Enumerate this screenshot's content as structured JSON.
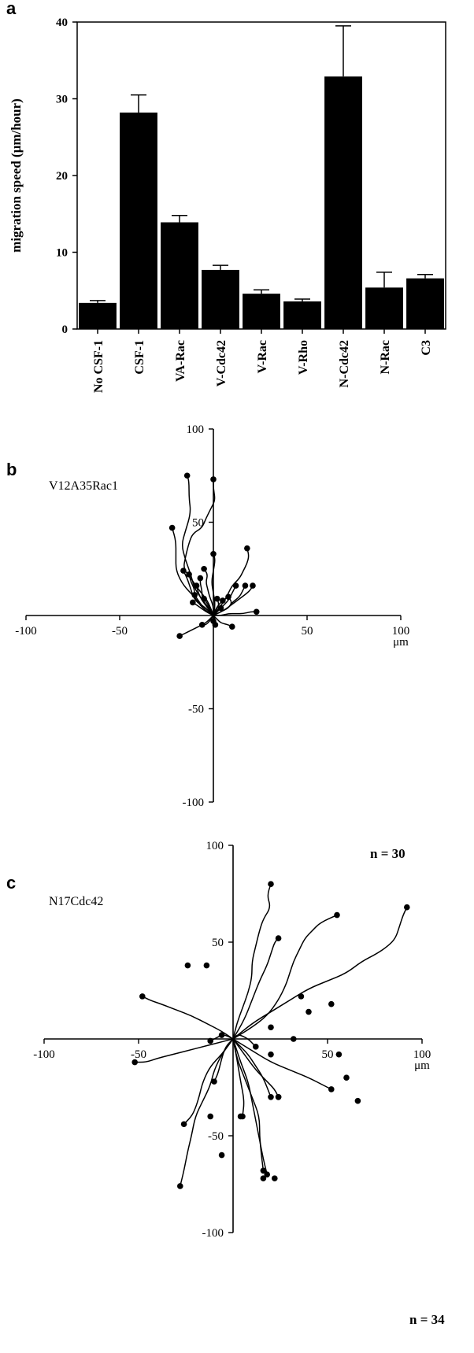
{
  "chart_data": [
    {
      "panel": "a",
      "type": "bar",
      "ylabel": "migration speed (μm/hour)",
      "ylim": [
        0,
        40
      ],
      "yticks": [
        0,
        10,
        20,
        30,
        40
      ],
      "categories": [
        "No CSF-1",
        "CSF-1",
        "VA-Rac",
        "V-Cdc42",
        "V-Rac",
        "V-Rho",
        "N-Cdc42",
        "N-Rac",
        "C3"
      ],
      "values": [
        3.4,
        28.2,
        13.9,
        7.7,
        4.6,
        3.6,
        32.9,
        5.4,
        6.6
      ],
      "errors": [
        0.3,
        2.3,
        0.9,
        0.6,
        0.5,
        0.3,
        6.6,
        2.0,
        0.5
      ]
    },
    {
      "panel": "b",
      "type": "line",
      "subtitle": "V12A35Rac1",
      "xlim": [
        -100,
        100
      ],
      "ylim": [
        -100,
        100
      ],
      "xticks": [
        -100,
        -50,
        50,
        100
      ],
      "yticks": [
        100,
        50,
        -50,
        -100
      ],
      "unit": "μm",
      "n_label": "n = 30",
      "tracks": [
        [
          [
            0,
            0
          ],
          [
            -4,
            6
          ],
          [
            -10,
            14
          ],
          [
            -12,
            22
          ],
          [
            -15,
            30
          ],
          [
            -17,
            38
          ],
          [
            -15,
            45
          ],
          [
            -12,
            55
          ],
          [
            -13,
            63
          ],
          [
            -13,
            72
          ],
          [
            -14,
            75
          ]
        ],
        [
          [
            0,
            0
          ],
          [
            -6,
            4
          ],
          [
            -10,
            10
          ],
          [
            -16,
            16
          ],
          [
            -20,
            24
          ],
          [
            -20,
            32
          ],
          [
            -20,
            40
          ],
          [
            -22,
            47
          ]
        ],
        [
          [
            0,
            0
          ],
          [
            -3,
            8
          ],
          [
            -8,
            14
          ],
          [
            -12,
            20
          ],
          [
            -16,
            25
          ],
          [
            -15,
            31
          ],
          [
            -13,
            39
          ],
          [
            -11,
            44
          ],
          [
            -6,
            47
          ],
          [
            -4,
            52
          ],
          [
            -1,
            58
          ],
          [
            1,
            62
          ],
          [
            0,
            68
          ],
          [
            0,
            73
          ]
        ],
        [
          [
            0,
            0
          ],
          [
            3,
            4
          ],
          [
            6,
            8
          ],
          [
            8,
            12
          ],
          [
            10,
            16
          ],
          [
            14,
            20
          ],
          [
            16,
            24
          ],
          [
            18,
            28
          ],
          [
            19,
            32
          ],
          [
            18,
            36
          ]
        ],
        [
          [
            0,
            0
          ],
          [
            -4,
            4
          ],
          [
            -10,
            8
          ],
          [
            -12,
            14
          ],
          [
            -14,
            20
          ],
          [
            -16,
            24
          ]
        ],
        [
          [
            0,
            0
          ],
          [
            -4,
            4
          ],
          [
            -10,
            8
          ],
          [
            -10,
            14
          ],
          [
            -12,
            18
          ],
          [
            -13,
            22
          ]
        ],
        [
          [
            0,
            0
          ],
          [
            -2,
            4
          ],
          [
            -6,
            8
          ],
          [
            -6,
            13
          ],
          [
            -7,
            17
          ],
          [
            -7,
            20
          ]
        ],
        [
          [
            0,
            0
          ],
          [
            -3,
            4
          ],
          [
            -6,
            8
          ],
          [
            -8,
            12
          ],
          [
            -9,
            16
          ]
        ],
        [
          [
            0,
            0
          ],
          [
            0,
            5
          ],
          [
            -2,
            10
          ],
          [
            -3,
            14
          ],
          [
            -4,
            18
          ],
          [
            -3,
            22
          ],
          [
            -5,
            25
          ]
        ],
        [
          [
            0,
            0
          ],
          [
            1,
            6
          ],
          [
            0,
            12
          ],
          [
            -1,
            18
          ],
          [
            0,
            24
          ],
          [
            1,
            30
          ],
          [
            0,
            33
          ]
        ],
        [
          [
            0,
            0
          ],
          [
            -3,
            3
          ],
          [
            -6,
            5
          ],
          [
            -8,
            8
          ],
          [
            -10,
            11
          ]
        ],
        [
          [
            0,
            0
          ],
          [
            -4,
            2
          ],
          [
            -8,
            5
          ],
          [
            -11,
            7
          ]
        ],
        [
          [
            0,
            0
          ],
          [
            1,
            2
          ],
          [
            2,
            4
          ],
          [
            3,
            6
          ],
          [
            2,
            9
          ]
        ],
        [
          [
            0,
            0
          ],
          [
            4,
            2
          ],
          [
            8,
            4
          ],
          [
            10,
            7
          ],
          [
            8,
            10
          ]
        ],
        [
          [
            0,
            0
          ],
          [
            4,
            2
          ],
          [
            8,
            4
          ],
          [
            10,
            7
          ],
          [
            14,
            10
          ],
          [
            16,
            14
          ],
          [
            17,
            16
          ]
        ],
        [
          [
            0,
            0
          ],
          [
            6,
            3
          ],
          [
            10,
            6
          ],
          [
            14,
            9
          ],
          [
            18,
            12
          ],
          [
            20,
            14
          ],
          [
            21,
            16
          ]
        ],
        [
          [
            0,
            0
          ],
          [
            4,
            4
          ],
          [
            8,
            8
          ],
          [
            10,
            12
          ],
          [
            12,
            16
          ]
        ],
        [
          [
            0,
            0
          ],
          [
            -2,
            -3
          ],
          [
            -4,
            -5
          ],
          [
            -6,
            -5
          ]
        ],
        [
          [
            0,
            0
          ],
          [
            -4,
            -4
          ],
          [
            -8,
            -6
          ],
          [
            -12,
            -8
          ],
          [
            -16,
            -10
          ],
          [
            -18,
            -11
          ]
        ],
        [
          [
            0,
            0
          ],
          [
            2,
            -2
          ],
          [
            4,
            -4
          ],
          [
            8,
            -5
          ],
          [
            10,
            -6
          ]
        ],
        [
          [
            0,
            0
          ],
          [
            4,
            0
          ],
          [
            8,
            1
          ],
          [
            12,
            1
          ],
          [
            16,
            1
          ],
          [
            20,
            2
          ],
          [
            23,
            2
          ]
        ],
        [
          [
            0,
            0
          ],
          [
            1,
            -2
          ],
          [
            0,
            -3
          ]
        ],
        [
          [
            0,
            0
          ],
          [
            1,
            3
          ],
          [
            3,
            6
          ],
          [
            5,
            8
          ]
        ],
        [
          [
            0,
            0
          ],
          [
            2,
            2
          ],
          [
            4,
            4
          ]
        ],
        [
          [
            0,
            0
          ],
          [
            0,
            -3
          ],
          [
            1,
            -5
          ]
        ],
        [
          [
            0,
            0
          ],
          [
            -1,
            3
          ],
          [
            -3,
            6
          ],
          [
            -5,
            9
          ]
        ]
      ]
    },
    {
      "panel": "c",
      "type": "line",
      "subtitle": "N17Cdc42",
      "xlim": [
        -100,
        100
      ],
      "ylim": [
        -100,
        100
      ],
      "xticks": [
        -100,
        -50,
        50,
        100
      ],
      "yticks": [
        100,
        50,
        -50,
        -100
      ],
      "unit": "μm",
      "n_label": "n = 34",
      "tracks": [
        [
          [
            0,
            0
          ],
          [
            2,
            8
          ],
          [
            5,
            16
          ],
          [
            8,
            24
          ],
          [
            10,
            32
          ],
          [
            10,
            40
          ],
          [
            12,
            48
          ],
          [
            14,
            56
          ],
          [
            16,
            62
          ],
          [
            20,
            68
          ],
          [
            18,
            74
          ],
          [
            20,
            80
          ]
        ],
        [
          [
            0,
            0
          ],
          [
            10,
            6
          ],
          [
            18,
            12
          ],
          [
            24,
            20
          ],
          [
            28,
            28
          ],
          [
            30,
            34
          ],
          [
            32,
            40
          ],
          [
            35,
            46
          ],
          [
            38,
            52
          ],
          [
            42,
            56
          ],
          [
            46,
            60
          ],
          [
            55,
            64
          ]
        ],
        [
          [
            0,
            0
          ],
          [
            10,
            8
          ],
          [
            20,
            14
          ],
          [
            30,
            20
          ],
          [
            40,
            26
          ],
          [
            50,
            30
          ],
          [
            60,
            34
          ],
          [
            68,
            40
          ],
          [
            76,
            44
          ],
          [
            82,
            48
          ],
          [
            86,
            52
          ],
          [
            88,
            58
          ],
          [
            90,
            64
          ],
          [
            92,
            68
          ]
        ],
        [
          [
            0,
            0
          ],
          [
            6,
            10
          ],
          [
            10,
            20
          ],
          [
            14,
            30
          ],
          [
            18,
            38
          ],
          [
            20,
            44
          ],
          [
            22,
            50
          ],
          [
            24,
            52
          ]
        ],
        [
          [
            0,
            0
          ],
          [
            -6,
            4
          ],
          [
            -14,
            8
          ],
          [
            -22,
            12
          ],
          [
            -30,
            15
          ],
          [
            -38,
            18
          ],
          [
            -44,
            20
          ],
          [
            -48,
            22
          ]
        ],
        [
          [
            0,
            0
          ],
          [
            -8,
            -2
          ],
          [
            -16,
            -4
          ],
          [
            -24,
            -6
          ],
          [
            -32,
            -8
          ],
          [
            -40,
            -10
          ],
          [
            -46,
            -12
          ],
          [
            -52,
            -12
          ]
        ],
        [
          [
            0,
            0
          ],
          [
            -6,
            -8
          ],
          [
            -10,
            -16
          ],
          [
            -12,
            -24
          ],
          [
            -16,
            -32
          ],
          [
            -20,
            -40
          ],
          [
            -22,
            -50
          ],
          [
            -24,
            -58
          ],
          [
            -26,
            -68
          ],
          [
            -28,
            -76
          ]
        ],
        [
          [
            0,
            0
          ],
          [
            -6,
            -8
          ],
          [
            -12,
            -14
          ],
          [
            -16,
            -22
          ],
          [
            -18,
            -30
          ],
          [
            -20,
            -36
          ],
          [
            -22,
            -40
          ],
          [
            -26,
            -44
          ]
        ],
        [
          [
            0,
            0
          ],
          [
            2,
            -10
          ],
          [
            6,
            -20
          ],
          [
            10,
            -30
          ],
          [
            14,
            -40
          ],
          [
            14,
            -50
          ],
          [
            15,
            -60
          ],
          [
            16,
            -68
          ]
        ],
        [
          [
            0,
            0
          ],
          [
            4,
            -12
          ],
          [
            8,
            -22
          ],
          [
            10,
            -32
          ],
          [
            12,
            -42
          ],
          [
            14,
            -52
          ],
          [
            16,
            -62
          ],
          [
            18,
            -70
          ]
        ],
        [
          [
            0,
            0
          ],
          [
            2,
            -10
          ],
          [
            4,
            -22
          ],
          [
            6,
            -32
          ],
          [
            5,
            -40
          ]
        ],
        [
          [
            0,
            0
          ],
          [
            10,
            -6
          ],
          [
            20,
            -12
          ],
          [
            30,
            -16
          ],
          [
            40,
            -20
          ],
          [
            48,
            -24
          ],
          [
            52,
            -26
          ]
        ],
        [
          [
            0,
            0
          ],
          [
            6,
            -8
          ],
          [
            12,
            -16
          ],
          [
            18,
            -22
          ],
          [
            22,
            -26
          ],
          [
            24,
            -30
          ]
        ],
        [
          [
            0,
            0
          ],
          [
            4,
            -4
          ],
          [
            8,
            -8
          ],
          [
            12,
            -14
          ],
          [
            16,
            -20
          ],
          [
            20,
            -30
          ]
        ],
        [
          [
            0,
            0
          ],
          [
            -4,
            -4
          ],
          [
            -6,
            -10
          ],
          [
            -8,
            -18
          ],
          [
            -10,
            -22
          ]
        ],
        [
          [
            0,
            0
          ],
          [
            -4,
            2
          ],
          [
            -6,
            2
          ],
          [
            -8,
            1
          ],
          [
            -10,
            0
          ],
          [
            -12,
            -1
          ]
        ],
        [
          [
            0,
            0
          ],
          [
            2,
            2
          ],
          [
            4,
            2
          ],
          [
            8,
            0
          ],
          [
            10,
            -2
          ],
          [
            12,
            -4
          ]
        ]
      ],
      "points": [
        [
          -24,
          38
        ],
        [
          -14,
          38
        ],
        [
          20,
          6
        ],
        [
          36,
          22
        ],
        [
          40,
          14
        ],
        [
          32,
          0
        ],
        [
          20,
          -8
        ],
        [
          52,
          18
        ],
        [
          56,
          -8
        ],
        [
          60,
          -20
        ],
        [
          66,
          -32
        ],
        [
          24,
          -30
        ],
        [
          -12,
          -40
        ],
        [
          -6,
          -60
        ],
        [
          4,
          -40
        ],
        [
          16,
          -72
        ],
        [
          22,
          -72
        ],
        [
          -6,
          2
        ]
      ]
    }
  ]
}
